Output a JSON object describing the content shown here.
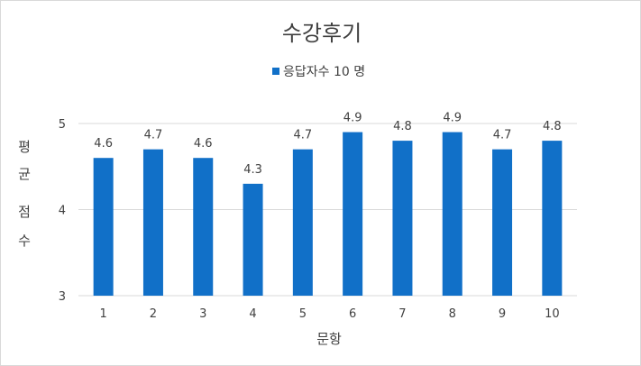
{
  "chart_data": {
    "type": "bar",
    "title": "수강후기",
    "legend": {
      "position": "top",
      "entries": [
        "응답자수 10 명"
      ]
    },
    "categories": [
      "1",
      "2",
      "3",
      "4",
      "5",
      "6",
      "7",
      "8",
      "9",
      "10"
    ],
    "series": [
      {
        "name": "응답자수 10 명",
        "values": [
          4.6,
          4.7,
          4.6,
          4.3,
          4.7,
          4.9,
          4.8,
          4.9,
          4.7,
          4.8
        ]
      }
    ],
    "data_labels": [
      "4.6",
      "4.7",
      "4.6",
      "4.3",
      "4.7",
      "4.9",
      "4.8",
      "4.9",
      "4.7",
      "4.8"
    ],
    "xlabel": "문항",
    "ylabel": "평균 점수",
    "ylabel_lines": [
      "평",
      "균",
      "점",
      "수"
    ],
    "ylim": [
      3,
      5
    ],
    "yticks": [
      "3",
      "4",
      "5"
    ],
    "grid": true,
    "colors": {
      "bar": "#1170C8",
      "grid": "#d9d9d9",
      "text": "#404040"
    }
  }
}
